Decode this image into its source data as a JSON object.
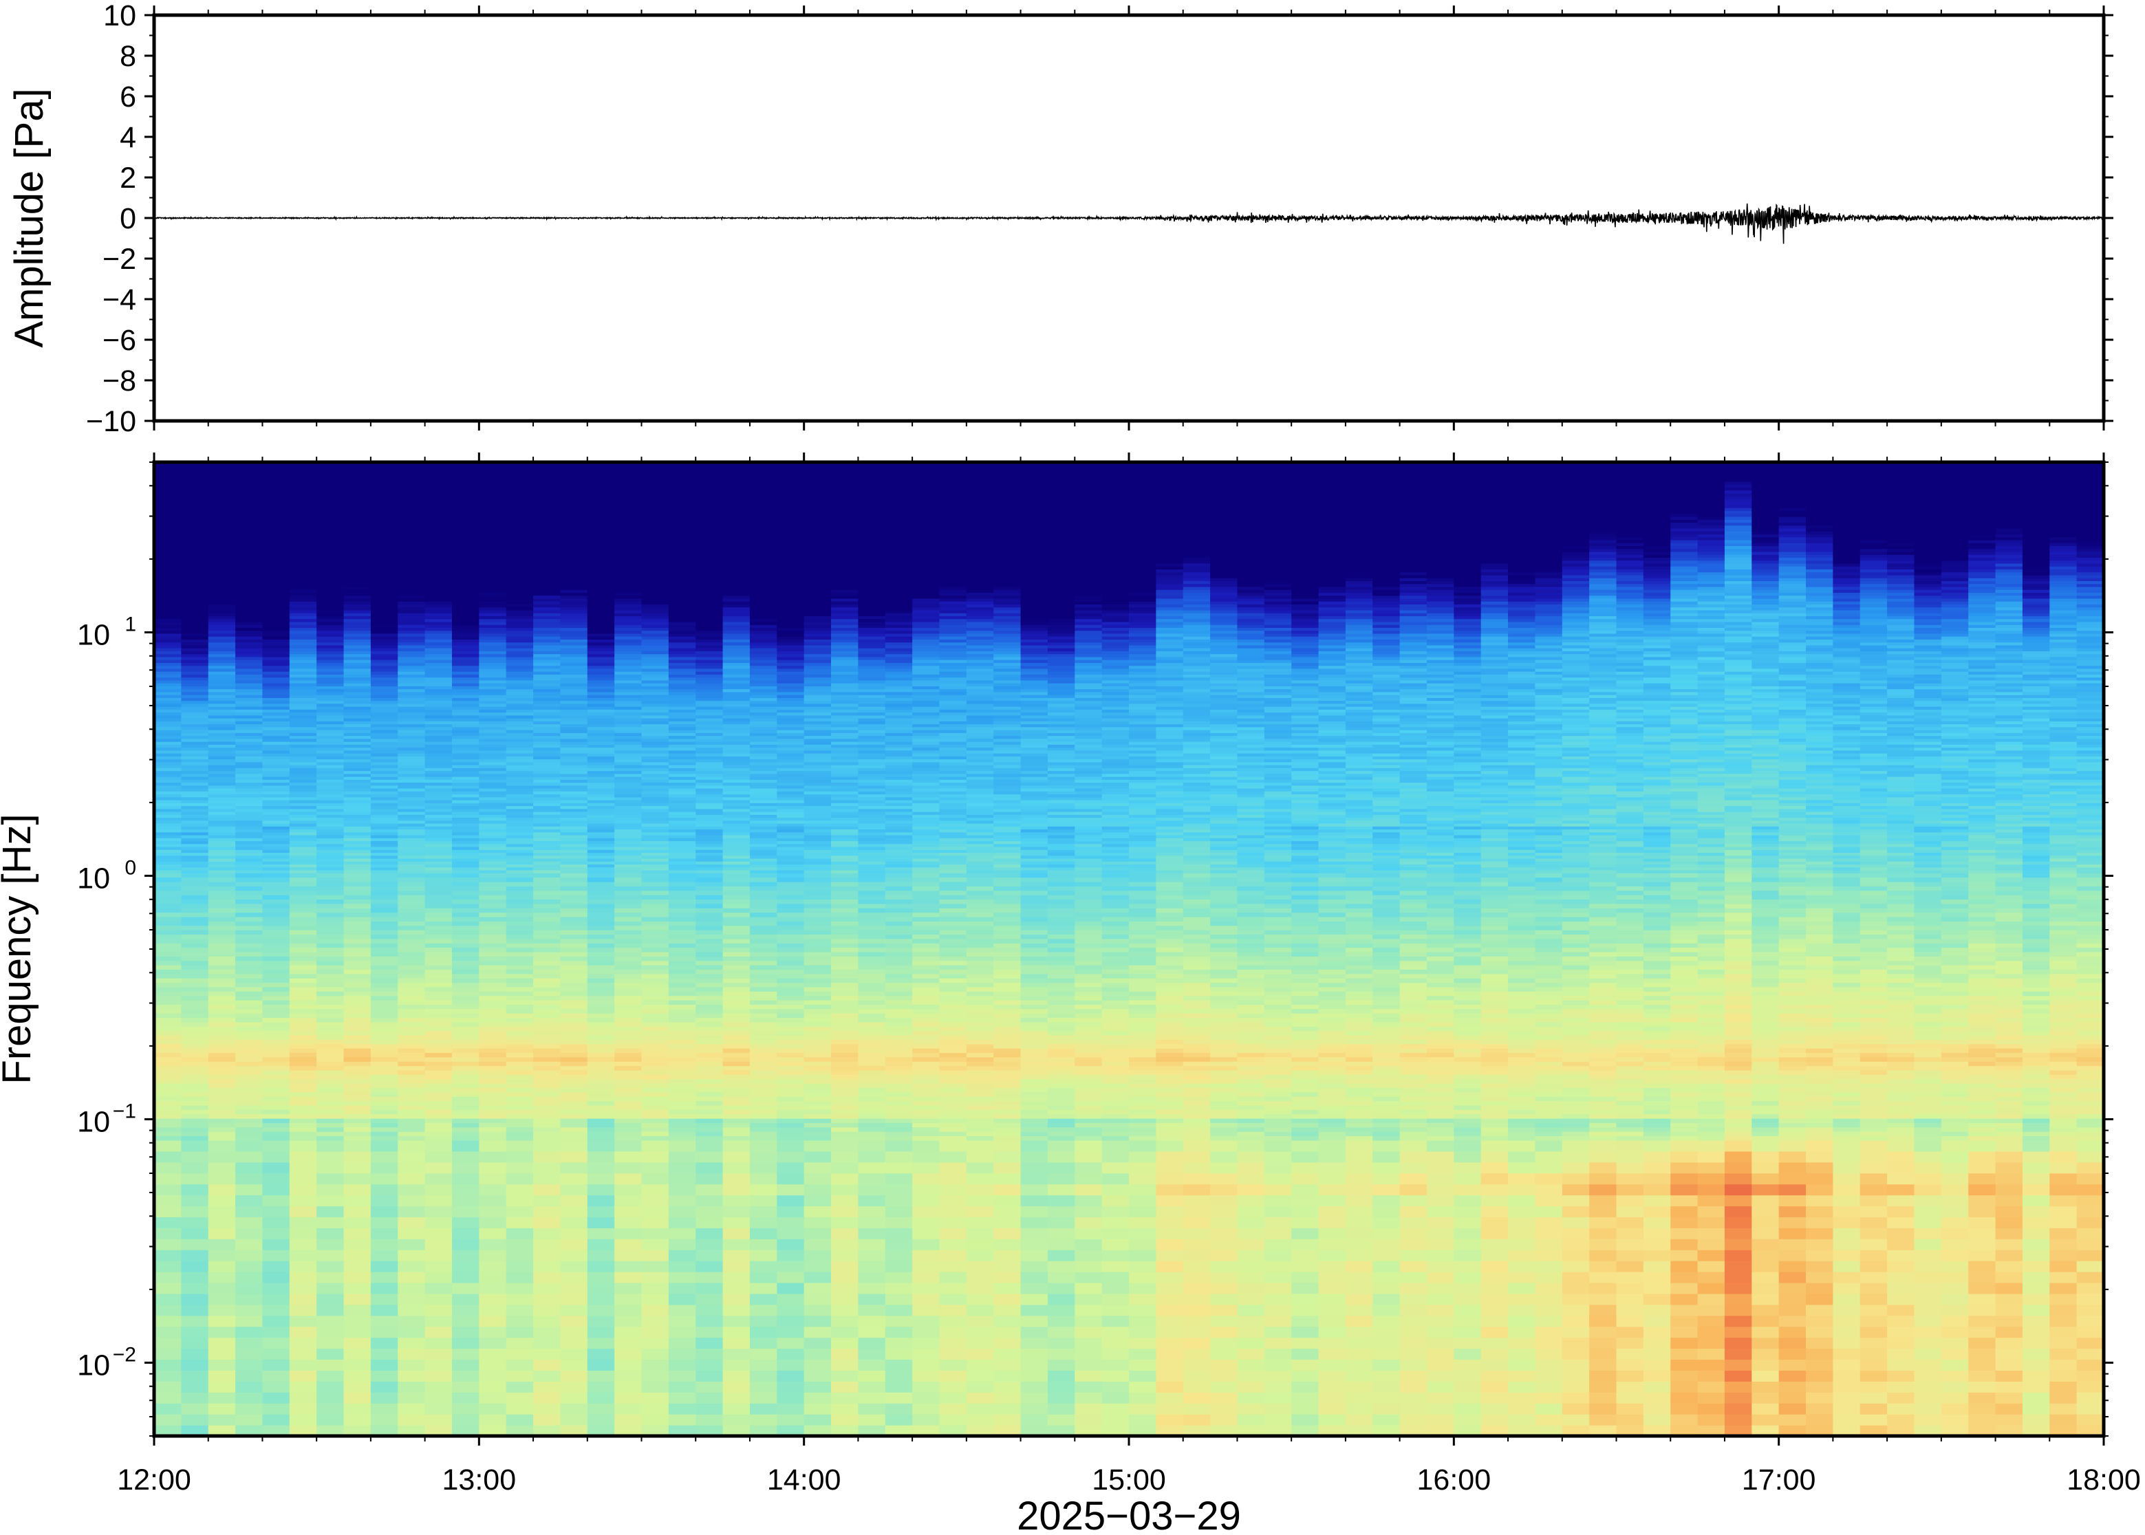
{
  "chart_data": [
    {
      "type": "line",
      "ylabel": "Amplitude [Pa]",
      "ylim": [
        -10,
        10
      ],
      "yticks": [
        10,
        8,
        6,
        4,
        2,
        0,
        -2,
        -4,
        -6,
        -8,
        -10
      ],
      "ytick_labels": [
        "10",
        "8",
        "6",
        "4",
        "2",
        "0",
        "−2",
        "−4",
        "−6",
        "−8",
        "−10"
      ],
      "xlim": [
        "12:00",
        "18:00"
      ],
      "grid": false,
      "series": [
        {
          "x": [
            "12:00",
            "13:00",
            "14:00",
            "15:00",
            "15:20",
            "16:00",
            "16:20",
            "16:40",
            "16:50",
            "17:00",
            "17:10",
            "18:00"
          ],
          "y_envelope": [
            0.05,
            0.05,
            0.05,
            0.08,
            0.3,
            0.15,
            0.4,
            0.6,
            0.8,
            1.4,
            0.3,
            0.1
          ],
          "color": "#000000"
        }
      ]
    },
    {
      "type": "heatmap",
      "ylabel": "Frequency [Hz]",
      "xlabel": "2025−03−29",
      "yscale": "log",
      "ylim": [
        0.005,
        50
      ],
      "yticks": [
        0.01,
        0.1,
        1,
        10
      ],
      "ytick_labels": [
        {
          "base": "10",
          "exp": "−2"
        },
        {
          "base": "10",
          "exp": "−1"
        },
        {
          "base": "10",
          "exp": "0"
        },
        {
          "base": "10",
          "exp": "1"
        }
      ],
      "x_tick_labels": [
        "12:00",
        "13:00",
        "14:00",
        "15:00",
        "16:00",
        "17:00",
        "18:00"
      ],
      "xlim": [
        "12:00",
        "18:00"
      ],
      "colormap": [
        "#0b007a",
        "#1a1ab8",
        "#1f5fe0",
        "#2a9bf0",
        "#4fd2f2",
        "#8fe8c4",
        "#d4f59a",
        "#f7e68c",
        "#f9b45a",
        "#f07846",
        "#e0403a"
      ],
      "grid": false
    }
  ]
}
